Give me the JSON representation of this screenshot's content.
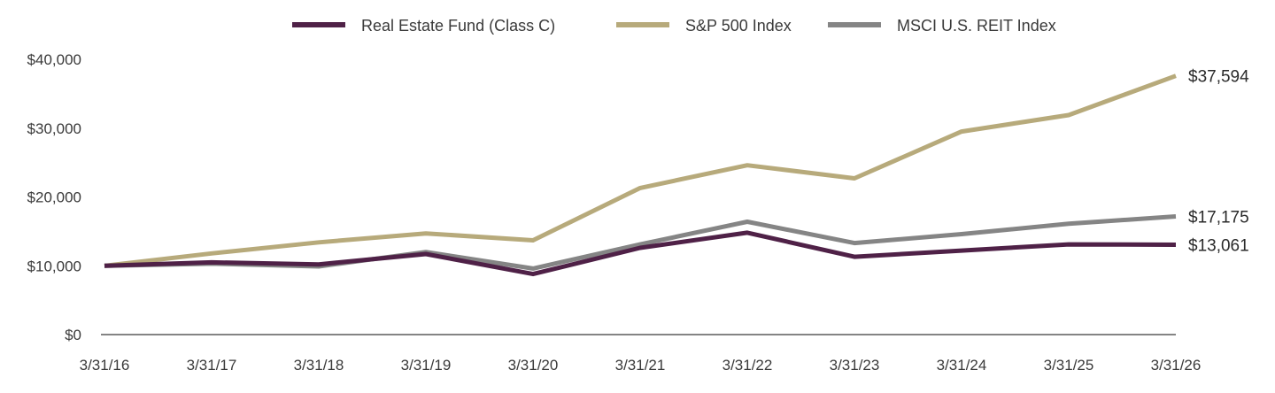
{
  "chart_data": {
    "type": "line",
    "x": [
      "3/31/16",
      "3/31/17",
      "3/31/18",
      "3/31/19",
      "3/31/20",
      "3/31/21",
      "3/31/22",
      "3/31/23",
      "3/31/24",
      "3/31/25",
      "3/31/26"
    ],
    "y_ticks": [
      "$0",
      "$10,000",
      "$20,000",
      "$30,000",
      "$40,000"
    ],
    "ylim": [
      0,
      40000
    ],
    "legend_position": "top",
    "grid": false,
    "series": [
      {
        "name": "Real Estate Fund (Class C)",
        "color": "#4f2147",
        "values": [
          10000,
          10500,
          10200,
          11700,
          8800,
          12600,
          14800,
          11300,
          12200,
          13100,
          13061
        ],
        "end_label": "$13,061"
      },
      {
        "name": "S&P 500 Index",
        "color": "#b7aa7b",
        "values": [
          10000,
          11800,
          13400,
          14700,
          13700,
          21300,
          24600,
          22700,
          29500,
          31900,
          37594
        ],
        "end_label": "$37,594"
      },
      {
        "name": "MSCI U.S. REIT Index",
        "color": "#858585",
        "values": [
          10000,
          10300,
          9900,
          12000,
          9600,
          13100,
          16400,
          13300,
          14600,
          16100,
          17175
        ],
        "end_label": "$17,175"
      }
    ]
  }
}
